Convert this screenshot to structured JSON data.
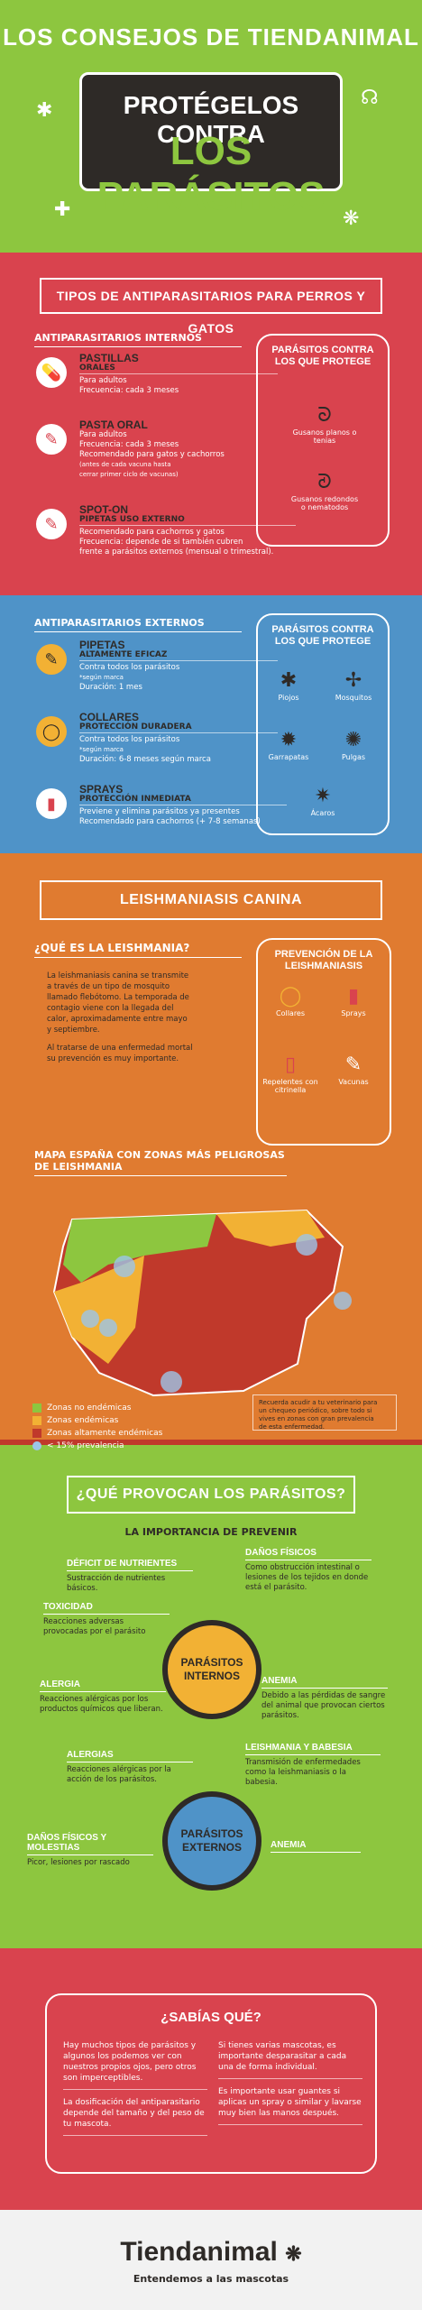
{
  "header": {
    "brand_title": "LOS CONSEJOS DE TIENDANIMAL",
    "board_line1": "PROTÉGELOS CONTRA",
    "board_line2": "LOS PARÁSITOS"
  },
  "types": {
    "banner": "TIPOS DE ANTIPARASITARIOS PARA PERROS Y GATOS",
    "internal": {
      "heading": "ANTIPARASITARIOS INTERNOS",
      "items": [
        {
          "name": "PASTILLAS",
          "sub": "ORALES",
          "lines": [
            "Para adultos",
            "Frecuencia: cada 3 meses"
          ]
        },
        {
          "name": "PASTA ORAL",
          "sub": "",
          "lines": [
            "Para adultos",
            "Frecuencia: cada 3 meses",
            "Recomendado para gatos y cachorros",
            "(antes de cada vacuna hasta",
            "cerrar primer ciclo de vacunas)"
          ]
        },
        {
          "name": "SPOT-ON",
          "sub": "PIPETAS USO EXTERNO",
          "lines": [
            "Recomendado para cachorros y gatos",
            "Frecuencia: depende de si también cubren",
            "frente a parásitos externos (mensual o trimestral)."
          ]
        }
      ],
      "box_title": "PARÁSITOS CONTRA LOS QUE PROTEGE",
      "parasites": [
        "Gusanos planos o tenias",
        "Gusanos redondos o nematodos"
      ]
    },
    "external": {
      "heading": "ANTIPARASITARIOS EXTERNOS",
      "items": [
        {
          "name": "PIPETAS",
          "sub": "ALTAMENTE EFICAZ",
          "lines": [
            "Contra todos los parásitos",
            "*según marca",
            "Duración: 1 mes"
          ]
        },
        {
          "name": "COLLARES",
          "sub": "PROTECCIÓN DURADERA",
          "lines": [
            "Contra todos los parásitos",
            "*según marca",
            "Duración: 6-8 meses según marca"
          ]
        },
        {
          "name": "SPRAYS",
          "sub": "PROTECCIÓN INMEDIATA",
          "lines": [
            "Previene y elimina parásitos ya presentes",
            "Recomendado para cachorros (+ 7-8 semanas)"
          ]
        }
      ],
      "box_title": "PARÁSITOS CONTRA LOS QUE PROTEGE",
      "parasites": [
        "Piojos",
        "Mosquitos",
        "Garrapatas",
        "Pulgas",
        "Ácaros"
      ]
    }
  },
  "leish": {
    "banner": "LEISHMANIASIS CANINA",
    "what_heading": "¿QUÉ ES LA LEISHMANIA?",
    "what_text": [
      "La leishmaniasis canina se transmite",
      "a través de un tipo de mosquito",
      "llamado flebótomo. La temporada de",
      "contagio viene con la llegada del",
      "calor, aproximadamente entre mayo",
      "y septiembre."
    ],
    "what_text2": [
      "Al tratarse de una enfermedad mortal",
      "su prevención es muy importante."
    ],
    "prev_title": "PREVENCIÓN DE LA LEISHMANIASIS",
    "prev_items": [
      "Collares",
      "Sprays",
      "Repelentes con citrinella",
      "Vacunas"
    ],
    "map_heading": "MAPA ESPAÑA CON ZONAS MÁS PELIGROSAS DE LEISHMANIA",
    "legend": [
      {
        "label": "Zonas no endémicas",
        "color": "#8dc63f"
      },
      {
        "label": "Zonas endémicas",
        "color": "#f2b134"
      },
      {
        "label": "Zonas altamente endémicas",
        "color": "#c0392b"
      },
      {
        "label": "< 15% prevalencia",
        "color": "#9cc6e8"
      }
    ],
    "note": [
      "Recuerda acudir a tu veterinario para",
      "un chequeo periódico, sobre todo si",
      "vives en zonas con gran prevalencia",
      "de esta enfermedad."
    ]
  },
  "effects": {
    "banner": "¿QUÉ PROVOCAN LOS PARÁSITOS?",
    "subtitle": "LA IMPORTANCIA DE PREVENIR",
    "internal_label": "PARÁSITOS INTERNOS",
    "external_label": "PARÁSITOS EXTERNOS",
    "internal": [
      {
        "h": "DÉFICIT DE NUTRIENTES",
        "d": "Sustracción de nutrientes básicos."
      },
      {
        "h": "DAÑOS FÍSICOS",
        "d": "Como obstrucción intestinal o lesiones de los tejidos en donde está el parásito."
      },
      {
        "h": "TOXICIDAD",
        "d": "Reacciones adversas provocadas por el parásito"
      },
      {
        "h": "ALERGIA",
        "d": "Reacciones alérgicas por los productos químicos que liberan."
      },
      {
        "h": "ANEMIA",
        "d": "Debido a las pérdidas de sangre del animal que provocan ciertos parásitos."
      }
    ],
    "external": [
      {
        "h": "ALERGIAS",
        "d": "Reacciones alérgicas por la acción de los parásitos."
      },
      {
        "h": "LEISHMANIA Y BABESIA",
        "d": "Transmisión de enfermedades como la leishmaniasis o la babesia."
      },
      {
        "h": "DAÑOS FÍSICOS Y MOLESTIAS",
        "d": "Picor, lesiones por rascado"
      },
      {
        "h": "ANEMIA",
        "d": ""
      }
    ]
  },
  "know": {
    "title": "¿SABÍAS QUÉ?",
    "left": [
      "Hay muchos tipos de parásitos y algunos los podemos ver con nuestros propios ojos, pero otros son imperceptibles.",
      "La dosificación del antiparasitario depende del tamaño y del peso de tu mascota."
    ],
    "right": [
      "Si tienes varias mascotas, es importante desparasitar a cada una de forma individual.",
      "Es importante usar guantes si aplicas un spray o similar y lavarse muy bien las manos después."
    ]
  },
  "footer": {
    "logo": "Tiendanimal",
    "tagline": "Entendemos a las mascotas"
  }
}
